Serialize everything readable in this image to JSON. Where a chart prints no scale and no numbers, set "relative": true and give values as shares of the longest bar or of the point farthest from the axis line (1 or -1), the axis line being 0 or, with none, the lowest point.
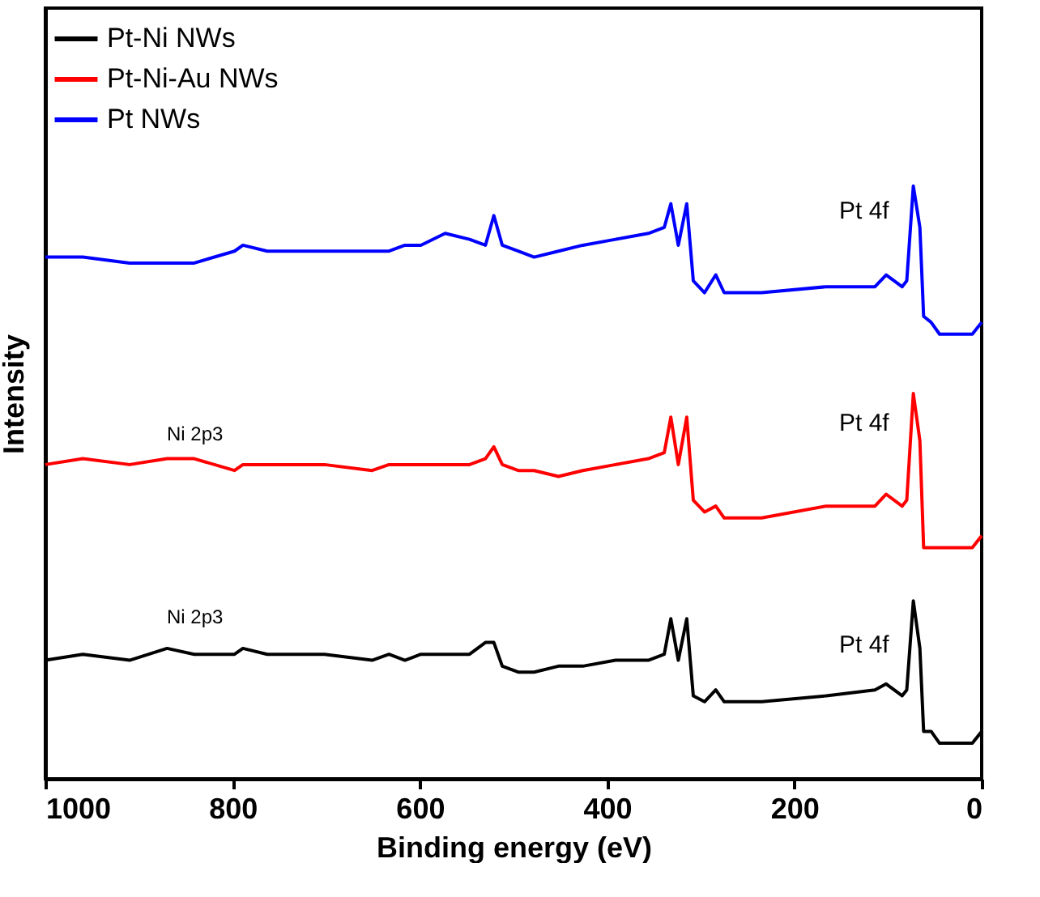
{
  "chart_data": {
    "type": "line",
    "relative": true,
    "xlabel": "Binding energy (eV)",
    "ylabel": "Intensity",
    "xlim": [
      1000,
      0
    ],
    "xticks": [
      0,
      200,
      400,
      600,
      800,
      1000
    ],
    "tick_labels": "x",
    "grid": false,
    "legend": "top left",
    "marker": "none",
    "line_style": "solid",
    "x": [
      1000,
      960,
      910,
      870,
      841,
      798,
      789,
      763,
      702,
      651,
      633,
      616,
      599,
      573,
      547,
      530,
      521,
      512,
      495,
      478,
      452,
      426,
      391,
      356,
      339,
      332,
      324,
      315,
      308,
      296,
      284,
      275,
      235,
      166,
      114,
      102,
      85,
      80,
      73,
      66,
      62,
      54,
      45,
      10,
      0
    ],
    "series": [
      {
        "name": "Pt-Ni NWs",
        "color": "#000000",
        "values": [
          0.2,
          0.21,
          0.2,
          0.22,
          0.21,
          0.21,
          0.22,
          0.21,
          0.21,
          0.2,
          0.21,
          0.2,
          0.21,
          0.21,
          0.21,
          0.23,
          0.23,
          0.19,
          0.18,
          0.18,
          0.19,
          0.19,
          0.2,
          0.2,
          0.21,
          0.27,
          0.2,
          0.27,
          0.14,
          0.13,
          0.15,
          0.13,
          0.13,
          0.14,
          0.15,
          0.16,
          0.14,
          0.15,
          0.3,
          0.22,
          0.08,
          0.08,
          0.06,
          0.06,
          0.08
        ]
      },
      {
        "name": "Pt-Ni-Au NWs",
        "color": "#ff0000",
        "values": [
          0.53,
          0.54,
          0.53,
          0.54,
          0.54,
          0.52,
          0.53,
          0.53,
          0.53,
          0.52,
          0.53,
          0.53,
          0.53,
          0.53,
          0.53,
          0.54,
          0.56,
          0.53,
          0.52,
          0.52,
          0.51,
          0.52,
          0.53,
          0.54,
          0.55,
          0.61,
          0.53,
          0.61,
          0.47,
          0.45,
          0.46,
          0.44,
          0.44,
          0.46,
          0.46,
          0.48,
          0.46,
          0.47,
          0.65,
          0.57,
          0.39,
          0.39,
          0.39,
          0.39,
          0.41
        ]
      },
      {
        "name": "Pt NWs",
        "color": "#0000ff",
        "values": [
          0.88,
          0.88,
          0.87,
          0.87,
          0.87,
          0.89,
          0.9,
          0.89,
          0.89,
          0.89,
          0.89,
          0.9,
          0.9,
          0.92,
          0.91,
          0.9,
          0.95,
          0.9,
          0.89,
          0.88,
          0.89,
          0.9,
          0.91,
          0.92,
          0.93,
          0.97,
          0.9,
          0.97,
          0.84,
          0.82,
          0.85,
          0.82,
          0.82,
          0.83,
          0.83,
          0.85,
          0.83,
          0.84,
          1.0,
          0.93,
          0.78,
          0.77,
          0.75,
          0.75,
          0.77
        ]
      }
    ],
    "annotations": [
      "Pt 4f",
      "Pt 4f",
      "Pt 4f",
      "Ni 2p3",
      "Ni 2p3"
    ]
  }
}
